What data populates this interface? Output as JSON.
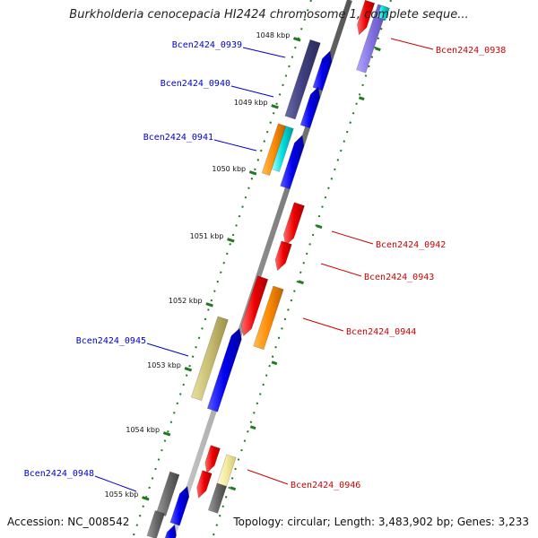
{
  "title": "Burkholderia cenocepacia HI2424 chromosome 1, complete seque...",
  "footer": {
    "accession": "Accession: NC_008542",
    "summary": "Topology: circular; Length: 3,483,902 bp; Genes: 3,233"
  },
  "colors": {
    "backbone": "#8c8c8c",
    "forward_label": "#0000cc",
    "reverse_label": "#cc0000",
    "tick": "#1f7a1f"
  },
  "scale_ticks": [
    "1048 kbp",
    "1049 kbp",
    "1050 kbp",
    "1051 kbp",
    "1052 kbp",
    "1053 kbp",
    "1054 kbp",
    "1055 kbp"
  ],
  "gene_labels": [
    {
      "name": "Bcen2424_0938",
      "strand": "reverse"
    },
    {
      "name": "Bcen2424_0939",
      "strand": "forward"
    },
    {
      "name": "Bcen2424_0940",
      "strand": "forward"
    },
    {
      "name": "Bcen2424_0941",
      "strand": "forward"
    },
    {
      "name": "Bcen2424_0942",
      "strand": "reverse"
    },
    {
      "name": "Bcen2424_0943",
      "strand": "reverse"
    },
    {
      "name": "Bcen2424_0944",
      "strand": "reverse"
    },
    {
      "name": "Bcen2424_0945",
      "strand": "forward"
    },
    {
      "name": "Bcen2424_0946",
      "strand": "reverse"
    },
    {
      "name": "Bcen2424_0948",
      "strand": "forward"
    }
  ]
}
